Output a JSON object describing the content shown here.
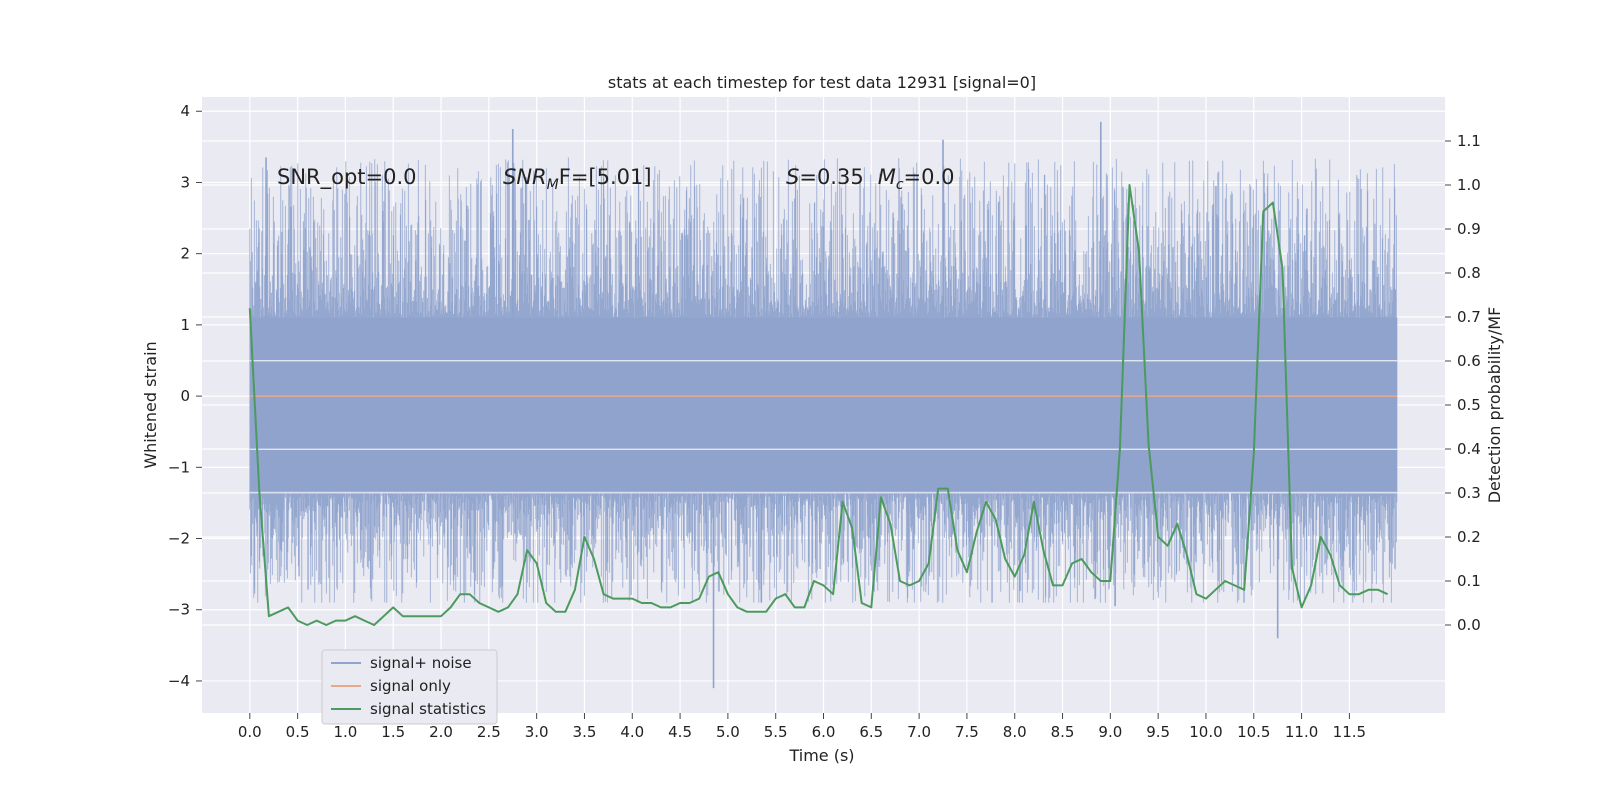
{
  "chart_data": {
    "type": "line",
    "title": "stats at each timestep for test data 12931 [signal=0]",
    "xlabel": "Time (s)",
    "ylabel": "Whitened strain",
    "ylabel_right": "Detection probability/MF",
    "xlim": [
      -0.5,
      12.5
    ],
    "ylim": [
      -4.45,
      4.2
    ],
    "ylim_right": [
      -0.2,
      1.2
    ],
    "x_ticks": [
      "0.0",
      "0.5",
      "1.0",
      "1.5",
      "2.0",
      "2.5",
      "3.0",
      "3.5",
      "4.0",
      "4.5",
      "5.0",
      "5.5",
      "6.0",
      "6.5",
      "7.0",
      "7.5",
      "8.0",
      "8.5",
      "9.0",
      "9.5",
      "10.0",
      "10.5",
      "11.0",
      "11.5"
    ],
    "y_ticks": [
      "4",
      "3",
      "2",
      "1",
      "0",
      "−1",
      "−2",
      "−3",
      "−4"
    ],
    "y_ticks_right": [
      "1.1",
      "1.0",
      "0.9",
      "0.8",
      "0.7",
      "0.6",
      "0.5",
      "0.4",
      "0.3",
      "0.2",
      "0.1",
      "0.0"
    ],
    "grid": true,
    "legend_position": "lower-left",
    "annotations": {
      "snr_opt": "SNR_opt=0.0",
      "snr_mf_base": "SNR",
      "snr_mf_sub": "M",
      "snr_mf_rest": "F=[5.01]",
      "s_var": "S",
      "s_val": "=0.35",
      "mc_var": "M",
      "mc_sub": "c",
      "mc_val": "=0.0"
    },
    "series": [
      {
        "name": "signal+ noise",
        "color": "#8fa3cc",
        "x_range": [
          0.0,
          12.0
        ],
        "band_low": -1.35,
        "band_high": 1.1,
        "min": -4.1,
        "max": 3.85,
        "peaks": [
          [
            0.17,
            3.35
          ],
          [
            2.75,
            3.75
          ],
          [
            7.25,
            3.6
          ],
          [
            8.9,
            3.85
          ],
          [
            4.85,
            -4.1
          ],
          [
            5.35,
            -2.9
          ],
          [
            9.05,
            -2.95
          ],
          [
            10.75,
            -3.4
          ]
        ]
      },
      {
        "name": "signal only",
        "color": "#e8a88a",
        "x": [
          0.0,
          12.0
        ],
        "y": [
          0.0,
          0.0
        ]
      },
      {
        "name": "signal statistics",
        "color": "#4c9a5e",
        "axis": "right",
        "x": [
          0.0,
          0.1,
          0.2,
          0.3,
          0.4,
          0.5,
          0.6,
          0.7,
          0.8,
          0.9,
          1.0,
          1.1,
          1.2,
          1.3,
          1.4,
          1.5,
          1.6,
          1.7,
          1.8,
          1.9,
          2.0,
          2.1,
          2.2,
          2.3,
          2.4,
          2.5,
          2.6,
          2.7,
          2.8,
          2.9,
          3.0,
          3.1,
          3.2,
          3.3,
          3.4,
          3.5,
          3.6,
          3.7,
          3.8,
          3.9,
          4.0,
          4.1,
          4.2,
          4.3,
          4.4,
          4.5,
          4.6,
          4.7,
          4.8,
          4.9,
          5.0,
          5.1,
          5.2,
          5.3,
          5.4,
          5.5,
          5.6,
          5.7,
          5.8,
          5.9,
          6.0,
          6.1,
          6.2,
          6.3,
          6.4,
          6.5,
          6.6,
          6.7,
          6.8,
          6.9,
          7.0,
          7.1,
          7.2,
          7.3,
          7.4,
          7.5,
          7.6,
          7.7,
          7.8,
          7.9,
          8.0,
          8.1,
          8.2,
          8.3,
          8.4,
          8.5,
          8.6,
          8.7,
          8.8,
          8.9,
          9.0,
          9.1,
          9.2,
          9.3,
          9.4,
          9.5,
          9.6,
          9.7,
          9.8,
          9.9,
          10.0,
          10.1,
          10.2,
          10.3,
          10.4,
          10.5,
          10.6,
          10.7,
          10.8,
          10.9,
          11.0,
          11.1,
          11.2,
          11.3,
          11.4,
          11.5,
          11.6,
          11.7,
          11.8,
          11.9
        ],
        "y": [
          0.72,
          0.3,
          0.02,
          0.03,
          0.04,
          0.01,
          0.0,
          0.01,
          0.0,
          0.01,
          0.01,
          0.02,
          0.01,
          0.0,
          0.02,
          0.04,
          0.02,
          0.02,
          0.02,
          0.02,
          0.02,
          0.04,
          0.07,
          0.07,
          0.05,
          0.04,
          0.03,
          0.04,
          0.07,
          0.17,
          0.14,
          0.05,
          0.03,
          0.03,
          0.08,
          0.2,
          0.15,
          0.07,
          0.06,
          0.06,
          0.06,
          0.05,
          0.05,
          0.04,
          0.04,
          0.05,
          0.05,
          0.06,
          0.11,
          0.12,
          0.07,
          0.04,
          0.03,
          0.03,
          0.03,
          0.06,
          0.07,
          0.04,
          0.04,
          0.1,
          0.09,
          0.07,
          0.28,
          0.22,
          0.05,
          0.04,
          0.29,
          0.23,
          0.1,
          0.09,
          0.1,
          0.14,
          0.31,
          0.31,
          0.17,
          0.12,
          0.21,
          0.28,
          0.24,
          0.15,
          0.11,
          0.16,
          0.28,
          0.17,
          0.09,
          0.09,
          0.14,
          0.15,
          0.12,
          0.1,
          0.1,
          0.4,
          1.0,
          0.85,
          0.41,
          0.2,
          0.18,
          0.23,
          0.16,
          0.07,
          0.06,
          0.08,
          0.1,
          0.09,
          0.08,
          0.39,
          0.94,
          0.96,
          0.81,
          0.13,
          0.04,
          0.09,
          0.2,
          0.16,
          0.09,
          0.07,
          0.07,
          0.08,
          0.08,
          0.07
        ]
      }
    ]
  }
}
